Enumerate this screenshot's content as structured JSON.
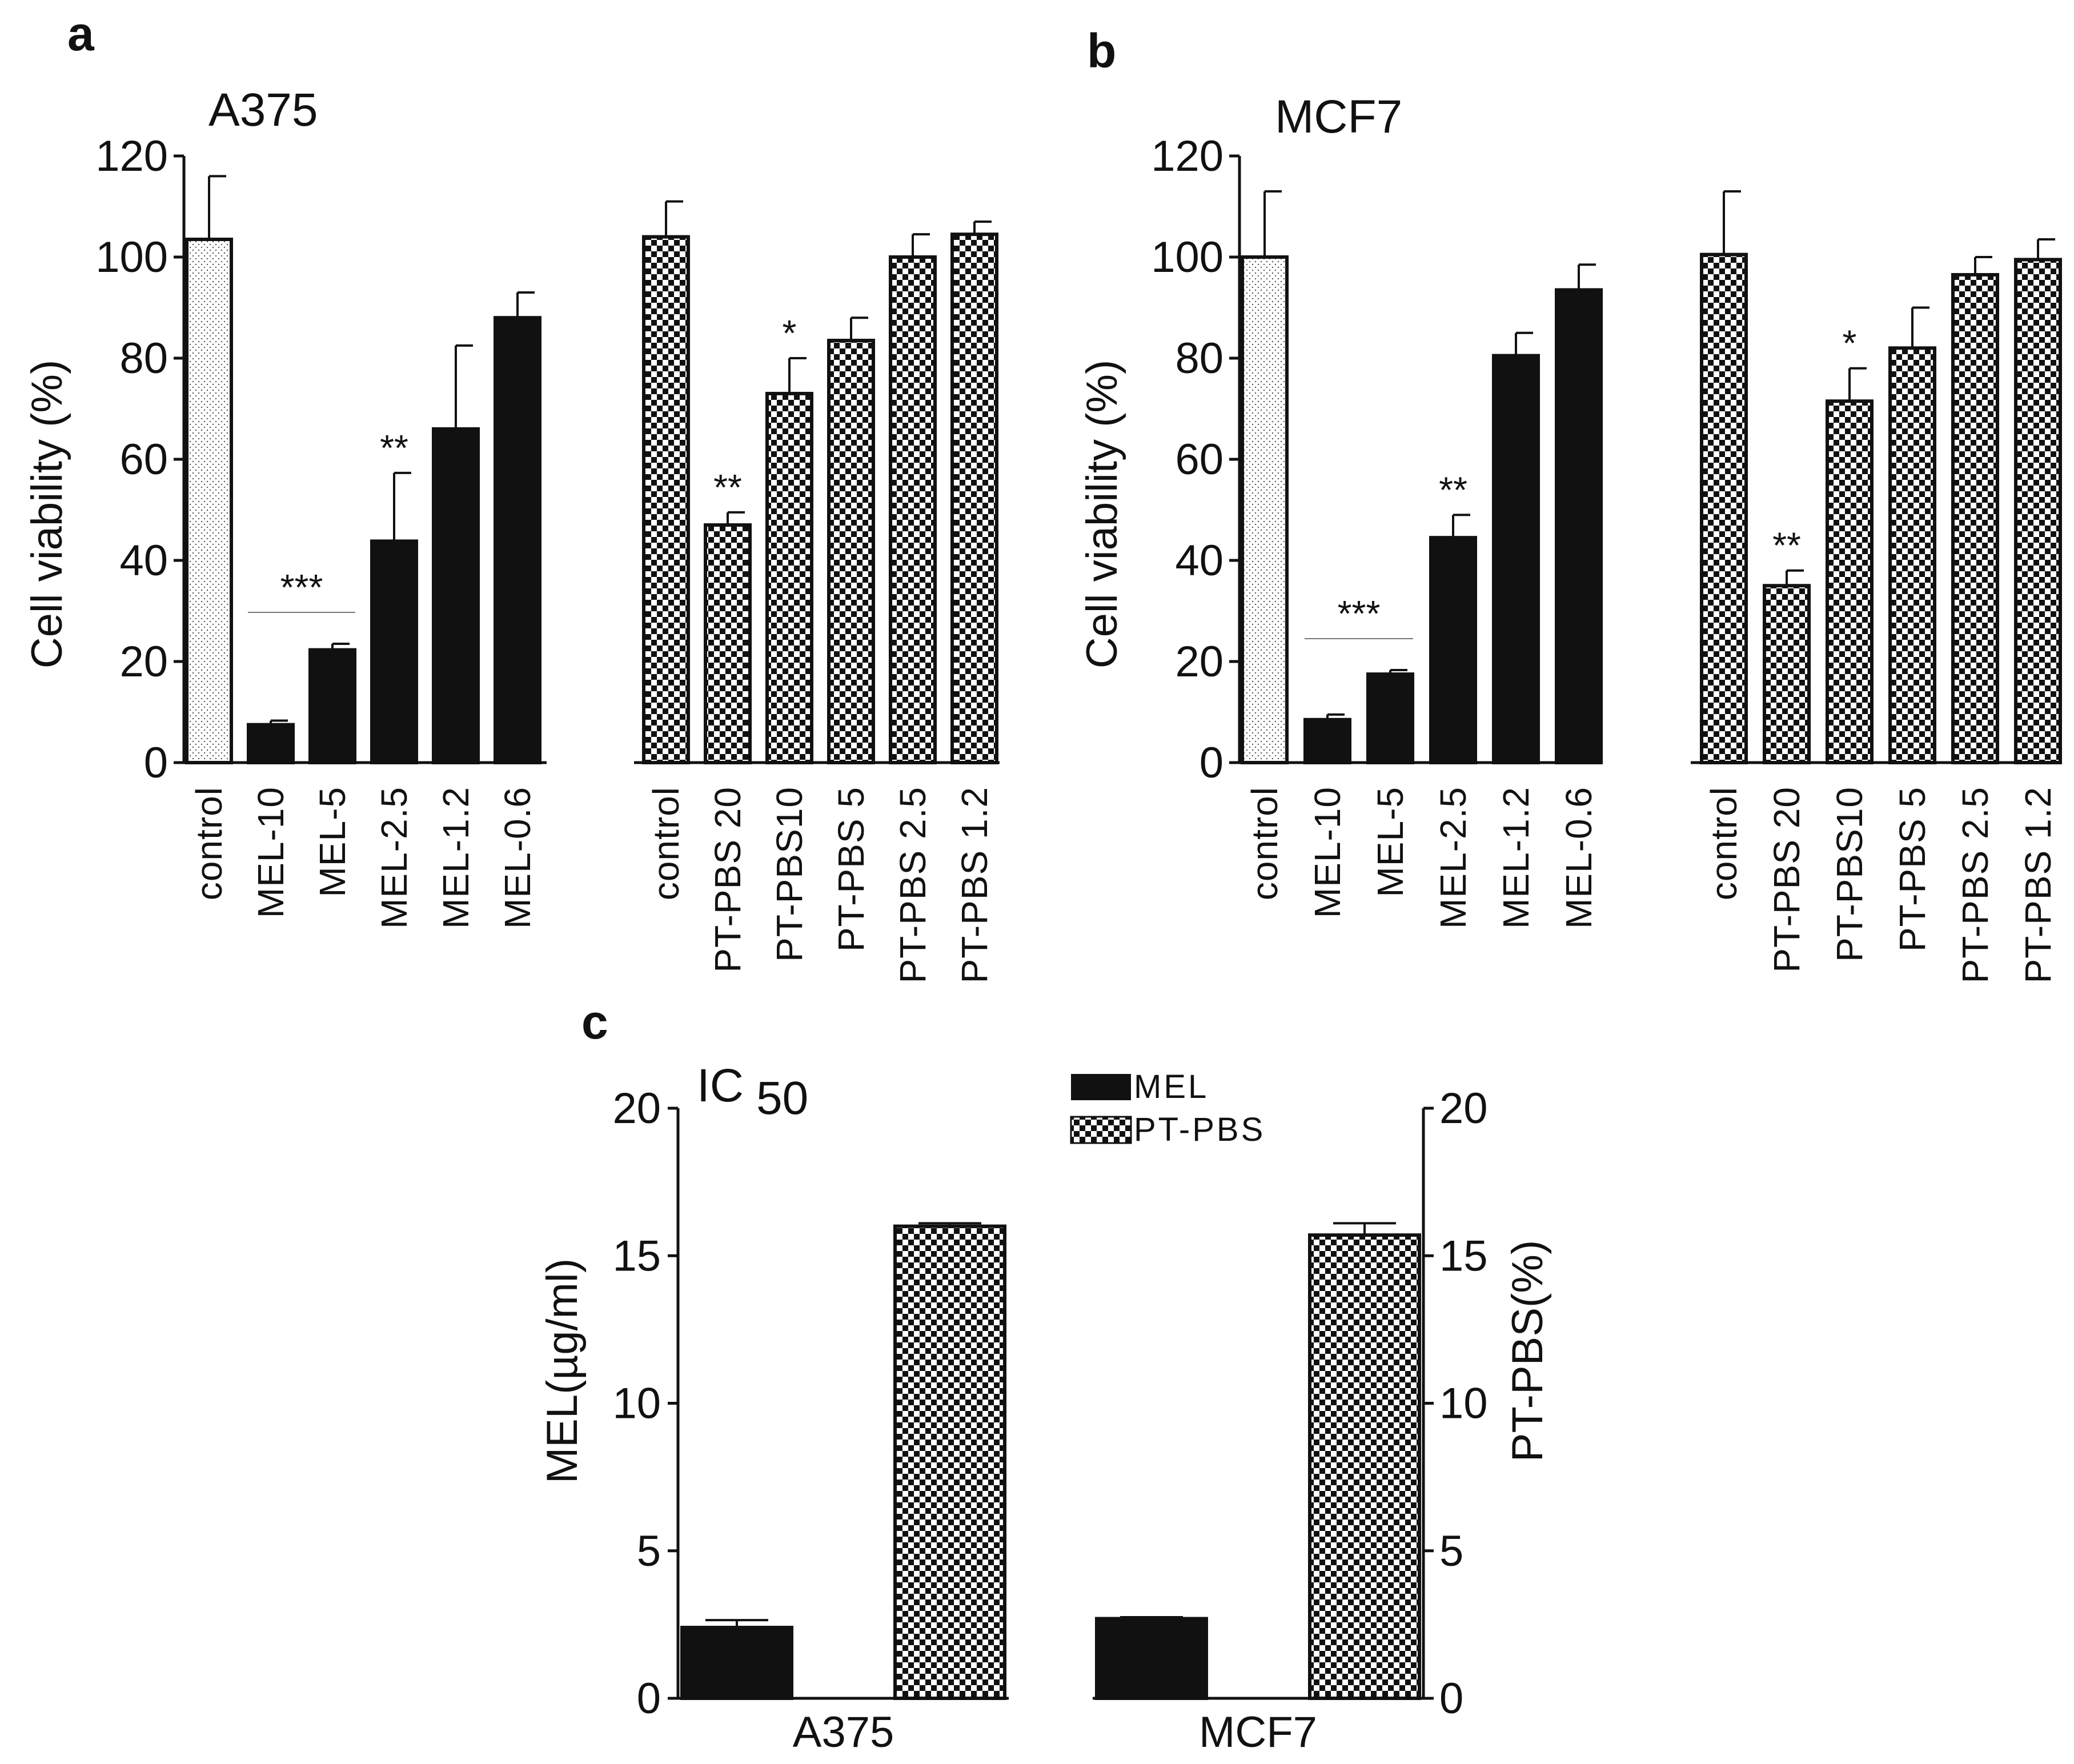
{
  "chart_data": [
    {
      "panel_label": "a",
      "type": "bar",
      "title": "A375",
      "ylabel": "Cell viability (%)",
      "ylim": [
        0,
        120
      ],
      "yticks": [
        "0",
        "20",
        "40",
        "60",
        "80",
        "100",
        "120"
      ],
      "pattern_legend": {
        "control": "dotted",
        "MEL": "solid black",
        "PT-PBS": "checkered"
      },
      "groups": [
        {
          "name": "MEL",
          "categories": [
            "control",
            "MEL-10",
            "MEL-5",
            "MEL-2.5",
            "MEL-1.2",
            "MEL-0.6"
          ],
          "values": [
            103.5,
            7.5,
            22.3,
            43.8,
            66.0,
            88.0
          ],
          "errors": [
            12.5,
            0.8,
            1.2,
            13.5,
            16.5,
            5.0
          ],
          "patterns": [
            "dots",
            "solid",
            "solid",
            "solid",
            "solid",
            "solid"
          ],
          "significance": {
            "bracket_label": "***",
            "bracket_span": [
              "MEL-10",
              "MEL-5"
            ],
            "MEL-2.5": "**"
          }
        },
        {
          "name": "PT-PBS",
          "categories": [
            "control",
            "PT-PBS 20",
            "PT-PBS10",
            "PT-PBS 5",
            "PT-PBS 2.5",
            "PT-PBS 1.2"
          ],
          "values": [
            104.0,
            47.0,
            73.0,
            83.5,
            100.0,
            104.5
          ],
          "errors": [
            7.0,
            2.5,
            7.0,
            4.5,
            4.5,
            2.5
          ],
          "patterns": [
            "checker",
            "checker",
            "checker",
            "checker",
            "checker",
            "checker"
          ],
          "significance": {
            "PT-PBS 20": "**",
            "PT-PBS10": "*"
          }
        }
      ]
    },
    {
      "panel_label": "b",
      "type": "bar",
      "title": "MCF7",
      "ylabel": "Cell viability (%)",
      "ylim": [
        0,
        120
      ],
      "yticks": [
        "0",
        "20",
        "40",
        "60",
        "80",
        "100",
        "120"
      ],
      "groups": [
        {
          "name": "MEL",
          "categories": [
            "control",
            "MEL-10",
            "MEL-5",
            "MEL-2.5",
            "MEL-1.2",
            "MEL-0.6"
          ],
          "values": [
            100.0,
            8.5,
            17.5,
            44.5,
            80.5,
            93.5
          ],
          "errors": [
            13.0,
            1.0,
            0.8,
            4.5,
            4.5,
            5.0
          ],
          "patterns": [
            "dots",
            "solid",
            "solid",
            "solid",
            "solid",
            "solid"
          ],
          "significance": {
            "bracket_label": "***",
            "bracket_span": [
              "MEL-10",
              "MEL-5"
            ],
            "MEL-2.5": "**"
          }
        },
        {
          "name": "PT-PBS",
          "categories": [
            "control",
            "PT-PBS 20",
            "PT-PBS10",
            "PT-PBS 5",
            "PT-PBS 2.5",
            "PT-PBS 1.2"
          ],
          "values": [
            100.5,
            35.0,
            71.5,
            82.0,
            96.5,
            99.5
          ],
          "errors": [
            12.5,
            3.0,
            6.5,
            8.0,
            3.5,
            4.0
          ],
          "patterns": [
            "checker",
            "checker",
            "checker",
            "checker",
            "checker",
            "checker"
          ],
          "significance": {
            "PT-PBS 20": "**",
            "PT-PBS10": "*"
          }
        }
      ]
    },
    {
      "panel_label": "c",
      "type": "bar",
      "title_main": "IC",
      "title_sub": "50",
      "ylabel_left": "MEL(µg/ml)",
      "ylabel_right": "PT-PBS(%)",
      "ylim": [
        0,
        20
      ],
      "yticks": [
        "0",
        "5",
        "10",
        "15",
        "20"
      ],
      "categories": [
        "A375",
        "MCF7"
      ],
      "legend": [
        {
          "label": "MEL",
          "pattern": "solid"
        },
        {
          "label": "PT-PBS",
          "pattern": "checker"
        }
      ],
      "series": [
        {
          "name": "MEL",
          "axis": "left",
          "values": [
            2.4,
            2.7
          ],
          "errors": [
            0.25,
            0.05
          ]
        },
        {
          "name": "PT-PBS",
          "axis": "right",
          "values": [
            16.0,
            15.7
          ],
          "errors": [
            0.1,
            0.4
          ]
        }
      ]
    }
  ]
}
